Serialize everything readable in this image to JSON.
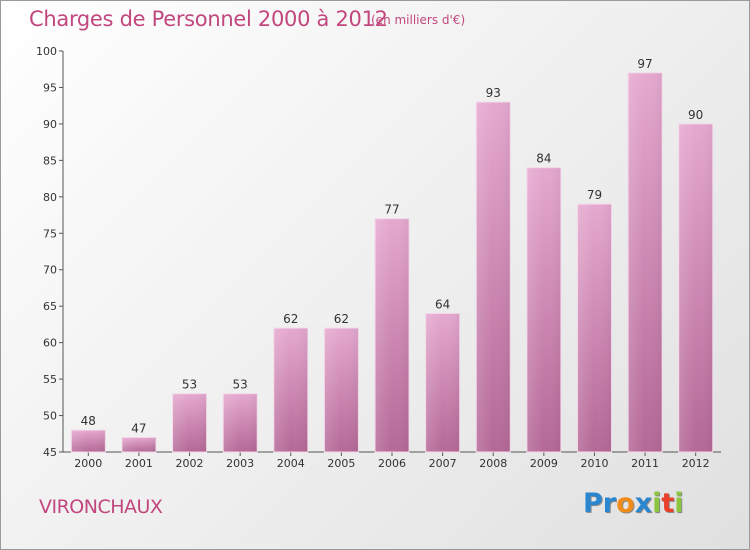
{
  "chart_data": {
    "type": "bar",
    "title": "Charges de Personnel 2000 à 2012",
    "subtitle": "(en milliers d'€)",
    "categories": [
      "2000",
      "2001",
      "2002",
      "2003",
      "2004",
      "2005",
      "2006",
      "2007",
      "2008",
      "2009",
      "2010",
      "2011",
      "2012"
    ],
    "values": [
      48,
      47,
      53,
      53,
      62,
      62,
      77,
      64,
      93,
      84,
      79,
      97,
      90
    ],
    "ylim": [
      45,
      100
    ],
    "yticks": [
      45,
      50,
      55,
      60,
      65,
      70,
      75,
      80,
      85,
      90,
      95,
      100
    ],
    "grid": false,
    "bar_color": "#d88fb8"
  },
  "footer": {
    "commune": "VIRONCHAUX",
    "logo_letters": [
      {
        "char": "P",
        "color": "#2a86cf"
      },
      {
        "char": "r",
        "color": "#2a86cf"
      },
      {
        "char": "o",
        "color": "#f08c1a"
      },
      {
        "char": "x",
        "color": "#2a86cf"
      },
      {
        "char": "i",
        "color": "#8cc63f"
      },
      {
        "char": "t",
        "color": "#e8402a"
      },
      {
        "char": "i",
        "color": "#8cc63f"
      }
    ]
  }
}
